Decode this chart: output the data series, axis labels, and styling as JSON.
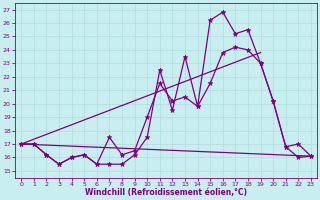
{
  "bg_color": "#c8eef0",
  "line_color": "#800080",
  "grid_color": "#a8d8dc",
  "xlim": [
    -0.5,
    23.5
  ],
  "ylim": [
    14.5,
    27.5
  ],
  "xticks": [
    0,
    1,
    2,
    3,
    4,
    5,
    6,
    7,
    8,
    9,
    10,
    11,
    12,
    13,
    14,
    15,
    16,
    17,
    18,
    19,
    20,
    21,
    22,
    23
  ],
  "yticks": [
    15,
    16,
    17,
    18,
    19,
    20,
    21,
    22,
    23,
    24,
    25,
    26,
    27
  ],
  "xlabel": "Windchill (Refroidissement éolien,°C)",
  "series": [
    {
      "name": "line1_jagged",
      "x": [
        0,
        1,
        2,
        3,
        4,
        5,
        6,
        7,
        8,
        9,
        10,
        11,
        12,
        13,
        14,
        15,
        16,
        17,
        18,
        19,
        20,
        21,
        22,
        23
      ],
      "y": [
        17.0,
        17.0,
        16.2,
        15.5,
        16.0,
        16.2,
        15.5,
        15.5,
        15.5,
        16.2,
        17.5,
        22.5,
        19.5,
        23.5,
        19.8,
        26.2,
        26.8,
        25.2,
        25.5,
        23.0,
        20.2,
        16.8,
        17.0,
        16.1
      ],
      "marker": true
    },
    {
      "name": "line2_smooth",
      "x": [
        0,
        1,
        2,
        3,
        4,
        5,
        6,
        7,
        8,
        9,
        10,
        11,
        12,
        13,
        14,
        15,
        16,
        17,
        18,
        19,
        20,
        21,
        22,
        23
      ],
      "y": [
        17.0,
        17.0,
        16.2,
        15.5,
        16.0,
        16.2,
        15.5,
        17.5,
        16.2,
        16.5,
        19.0,
        21.5,
        20.2,
        20.5,
        19.8,
        21.5,
        23.8,
        24.2,
        24.0,
        23.0,
        20.2,
        16.8,
        16.0,
        16.1
      ],
      "marker": true
    },
    {
      "name": "line3_diagonal",
      "x": [
        0,
        23
      ],
      "y": [
        17.0,
        16.1
      ],
      "marker": false
    },
    {
      "name": "line4_rising",
      "x": [
        0,
        19
      ],
      "y": [
        17.0,
        23.8
      ],
      "marker": false
    }
  ],
  "marker_symbol": "*",
  "markersize": 3.5,
  "linewidth": 0.9,
  "tick_fontsize": 4.5,
  "xlabel_fontsize": 5.5
}
